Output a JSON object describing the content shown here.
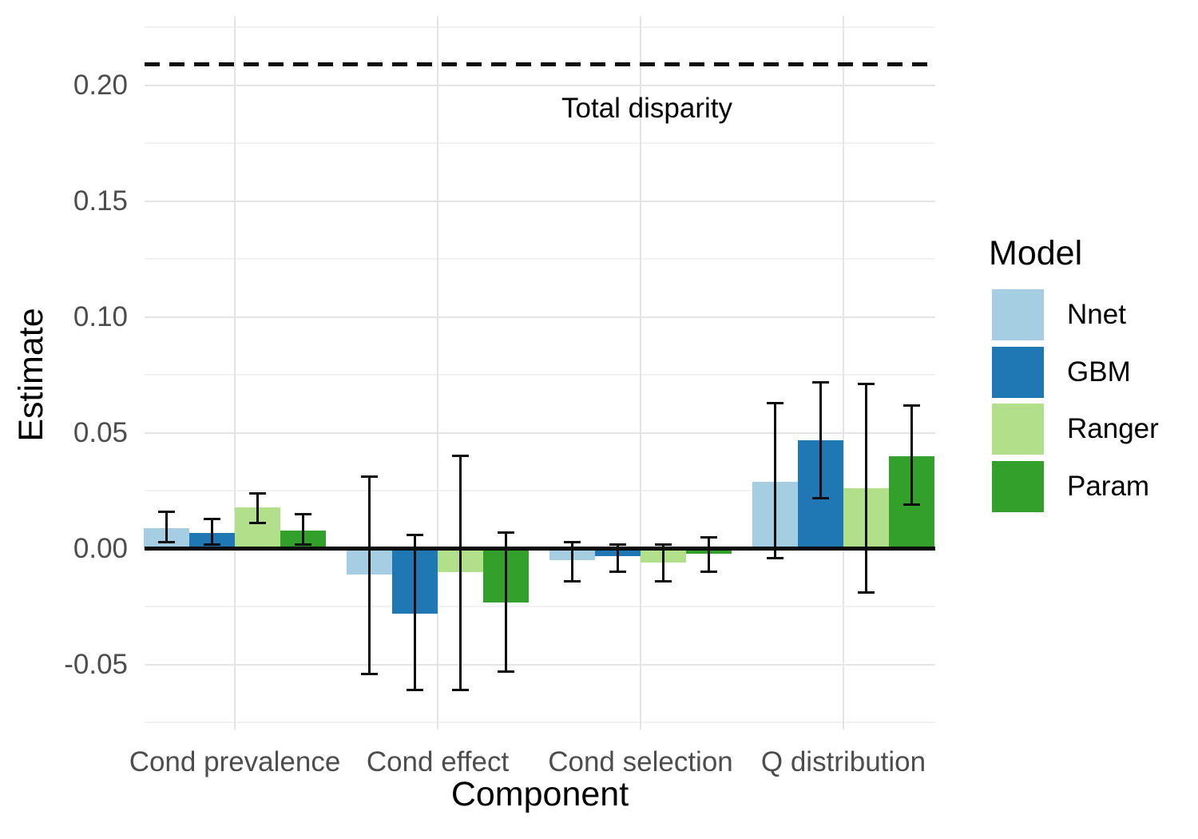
{
  "chart_data": {
    "type": "bar",
    "title": "",
    "categories": [
      "Cond prevalence",
      "Cond effect",
      "Cond selection",
      "Q distribution"
    ],
    "series": [
      {
        "name": "Nnet",
        "color": "#A6CEE3",
        "values": [
          0.009,
          -0.011,
          -0.005,
          0.029
        ],
        "ci_low": [
          0.003,
          -0.054,
          -0.014,
          -0.004
        ],
        "ci_high": [
          0.016,
          0.031,
          0.003,
          0.063
        ]
      },
      {
        "name": "GBM",
        "color": "#1F78B4",
        "values": [
          0.007,
          -0.028,
          -0.003,
          0.047
        ],
        "ci_low": [
          0.002,
          -0.061,
          -0.01,
          0.022
        ],
        "ci_high": [
          0.013,
          0.006,
          0.002,
          0.072
        ]
      },
      {
        "name": "Ranger",
        "color": "#B2DF8A",
        "values": [
          0.018,
          -0.01,
          -0.006,
          0.026
        ],
        "ci_low": [
          0.011,
          -0.061,
          -0.014,
          -0.019
        ],
        "ci_high": [
          0.024,
          0.04,
          0.002,
          0.071
        ]
      },
      {
        "name": "Param",
        "color": "#33A02C",
        "values": [
          0.008,
          -0.023,
          -0.002,
          0.04
        ],
        "ci_low": [
          0.002,
          -0.053,
          -0.01,
          0.019
        ],
        "ci_high": [
          0.015,
          0.007,
          0.005,
          0.062
        ]
      }
    ],
    "reference_line": {
      "value": 0.209,
      "label": "Total disparity",
      "style": "dashed"
    },
    "baseline": 0,
    "xlabel": "Component",
    "ylabel": "Estimate",
    "ylim": [
      -0.078,
      0.23
    ],
    "yticks": [
      {
        "label": "0.20",
        "value": 0.2
      },
      {
        "label": "0.15",
        "value": 0.15
      },
      {
        "label": "0.10",
        "value": 0.1
      },
      {
        "label": "0.05",
        "value": 0.05
      },
      {
        "label": "0.00",
        "value": 0.0
      },
      {
        "label": "-0.05",
        "value": -0.05
      }
    ],
    "yticks_minor": [
      0.225,
      0.175,
      0.125,
      0.075,
      0.025,
      -0.025,
      -0.075
    ],
    "legend": {
      "title": "Model",
      "position": "right",
      "entries": [
        "Nnet",
        "GBM",
        "Ranger",
        "Param"
      ]
    },
    "grid": true
  },
  "colors": {
    "axis_text": "#4d4d4d",
    "title_text": "#000000",
    "grid_major": "#e4e4e4",
    "grid_minor": "#f1f1f1",
    "line_black": "#0d0d0d",
    "background": "#ffffff"
  }
}
